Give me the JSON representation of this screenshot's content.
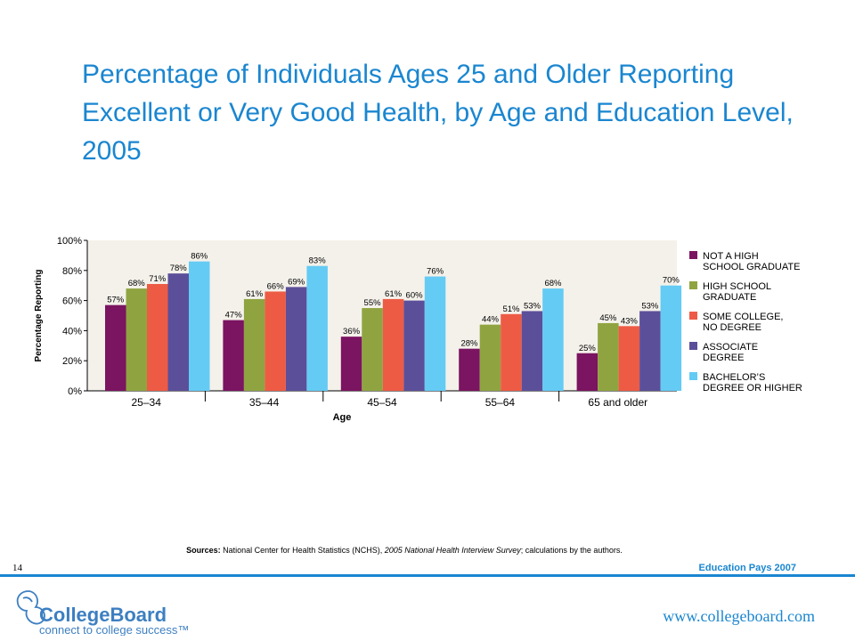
{
  "colors": {
    "title": "#1a86d0",
    "accent": "#1a86d0",
    "logo_blue": "#3d7fc1",
    "axis": "#000000"
  },
  "page": {
    "number": "14",
    "publication": "Education Pays 2007",
    "website": "www.collegeboard.com"
  },
  "logo": {
    "brand": "CollegeBoard",
    "tagline": "connect to college success™",
    "icon": "acorn-icon"
  },
  "sources": {
    "label": "Sources:",
    "text": " National Center for Health Statistics (NCHS), ",
    "italic": "2005 National Health Interview Survey",
    "tail": "; calculations by the authors."
  },
  "chart_data": {
    "type": "bar",
    "title": "Percentage of Individuals Ages 25 and Older Reporting Excellent or Very Good Health, by Age and Education Level, 2005",
    "xlabel": "Age",
    "ylabel": "Percentage Reporting",
    "ylim": [
      0,
      100
    ],
    "yticks": [
      "0%",
      "20%",
      "40%",
      "60%",
      "80%",
      "100%"
    ],
    "grid": false,
    "legend": "right",
    "categories": [
      "25–34",
      "35–44",
      "45–54",
      "55–64",
      "65 and older"
    ],
    "series": [
      {
        "name": "NOT A HIGH SCHOOL GRADUATE",
        "legend_lines": [
          "NOT A HIGH",
          "SCHOOL GRADUATE"
        ],
        "color": "#7b1461",
        "values": [
          57,
          47,
          36,
          28,
          25
        ]
      },
      {
        "name": "HIGH SCHOOL GRADUATE",
        "legend_lines": [
          "HIGH SCHOOL",
          "GRADUATE"
        ],
        "color": "#8fa440",
        "values": [
          68,
          61,
          55,
          44,
          45
        ]
      },
      {
        "name": "SOME COLLEGE, NO DEGREE",
        "legend_lines": [
          "SOME COLLEGE,",
          "NO DEGREE"
        ],
        "color": "#ee5b45",
        "values": [
          71,
          66,
          61,
          51,
          43
        ]
      },
      {
        "name": "ASSOCIATE DEGREE",
        "legend_lines": [
          "ASSOCIATE",
          "DEGREE"
        ],
        "color": "#5c4f9a",
        "values": [
          78,
          69,
          60,
          53,
          53
        ]
      },
      {
        "name": "BACHELOR’S DEGREE OR HIGHER",
        "legend_lines": [
          "BACHELOR’S",
          "DEGREE OR HIGHER"
        ],
        "color": "#64cbf4",
        "values": [
          86,
          83,
          76,
          68,
          70
        ]
      }
    ]
  }
}
